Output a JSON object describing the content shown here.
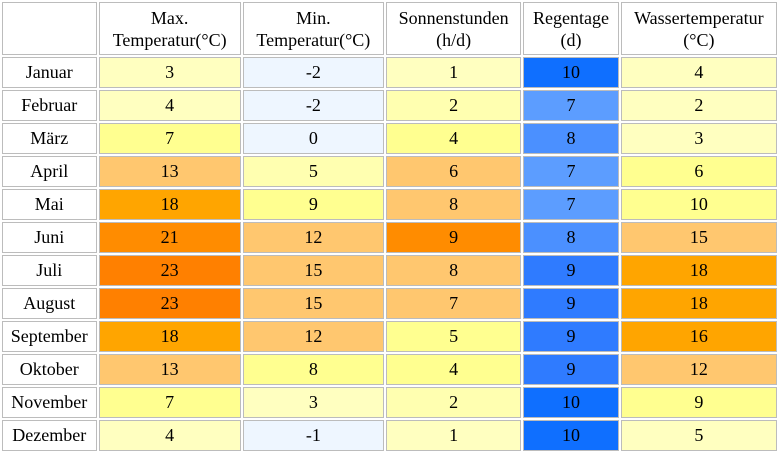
{
  "columns": [
    {
      "line1": "Max.",
      "line2": "Temperatur(°C)"
    },
    {
      "line1": "Min.",
      "line2": "Temperatur(°C)"
    },
    {
      "line1": "Sonnenstunden",
      "line2": "(h/d)"
    },
    {
      "line1": "Regentage",
      "line2": "(d)"
    },
    {
      "line1": "Wassertemperatur",
      "line2": "(°C)"
    }
  ],
  "rows": [
    {
      "month": "Januar",
      "max": "3",
      "min": "-2",
      "sun": "1",
      "rain": "10",
      "water": "4",
      "colors": {
        "max": "#ffffc0",
        "min": "#eef6ff",
        "sun": "#ffffc0",
        "rain": "#0f6fff",
        "water": "#ffffc0"
      }
    },
    {
      "month": "Februar",
      "max": "4",
      "min": "-2",
      "sun": "2",
      "rain": "7",
      "water": "2",
      "colors": {
        "max": "#ffffc0",
        "min": "#eef6ff",
        "sun": "#ffffb0",
        "rain": "#5c9dff",
        "water": "#ffffc0"
      }
    },
    {
      "month": "März",
      "max": "7",
      "min": "0",
      "sun": "4",
      "rain": "8",
      "water": "3",
      "colors": {
        "max": "#ffff90",
        "min": "#eef6ff",
        "sun": "#ffff90",
        "rain": "#4b90ff",
        "water": "#ffffc0"
      }
    },
    {
      "month": "April",
      "max": "13",
      "min": "5",
      "sun": "6",
      "rain": "7",
      "water": "6",
      "colors": {
        "max": "#ffc76f",
        "min": "#ffffb0",
        "sun": "#ffc76f",
        "rain": "#5c9dff",
        "water": "#ffff90"
      }
    },
    {
      "month": "Mai",
      "max": "18",
      "min": "9",
      "sun": "8",
      "rain": "7",
      "water": "10",
      "colors": {
        "max": "#ffa500",
        "min": "#ffff90",
        "sun": "#ffc76f",
        "rain": "#5c9dff",
        "water": "#ffff90"
      }
    },
    {
      "month": "Juni",
      "max": "21",
      "min": "12",
      "sun": "9",
      "rain": "8",
      "water": "15",
      "colors": {
        "max": "#ff8c00",
        "min": "#ffc76f",
        "sun": "#ff8c00",
        "rain": "#4b90ff",
        "water": "#ffc76f"
      }
    },
    {
      "month": "Juli",
      "max": "23",
      "min": "15",
      "sun": "8",
      "rain": "9",
      "water": "18",
      "colors": {
        "max": "#ff8000",
        "min": "#ffc76f",
        "sun": "#ffc76f",
        "rain": "#2f7bff",
        "water": "#ffa500"
      }
    },
    {
      "month": "August",
      "max": "23",
      "min": "15",
      "sun": "7",
      "rain": "9",
      "water": "18",
      "colors": {
        "max": "#ff8000",
        "min": "#ffc76f",
        "sun": "#ffc76f",
        "rain": "#2f7bff",
        "water": "#ffa500"
      }
    },
    {
      "month": "September",
      "max": "18",
      "min": "12",
      "sun": "5",
      "rain": "9",
      "water": "16",
      "colors": {
        "max": "#ffa500",
        "min": "#ffc76f",
        "sun": "#ffff90",
        "rain": "#2f7bff",
        "water": "#ffa500"
      }
    },
    {
      "month": "Oktober",
      "max": "13",
      "min": "8",
      "sun": "4",
      "rain": "9",
      "water": "12",
      "colors": {
        "max": "#ffc76f",
        "min": "#ffff90",
        "sun": "#ffff90",
        "rain": "#2f7bff",
        "water": "#ffc76f"
      }
    },
    {
      "month": "November",
      "max": "7",
      "min": "3",
      "sun": "2",
      "rain": "10",
      "water": "9",
      "colors": {
        "max": "#ffff90",
        "min": "#ffffc0",
        "sun": "#ffffb0",
        "rain": "#0f6fff",
        "water": "#ffff90"
      }
    },
    {
      "month": "Dezember",
      "max": "4",
      "min": "-1",
      "sun": "1",
      "rain": "10",
      "water": "5",
      "colors": {
        "max": "#ffffc0",
        "min": "#eef6ff",
        "sun": "#ffffc0",
        "rain": "#0f6fff",
        "water": "#ffffc0"
      }
    }
  ]
}
